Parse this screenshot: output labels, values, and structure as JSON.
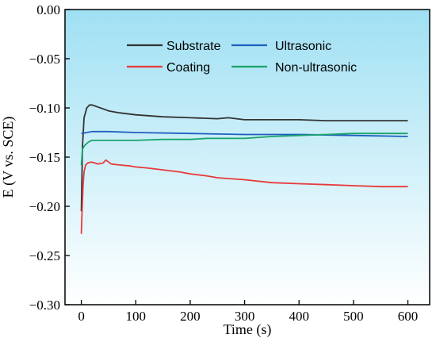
{
  "chart_data": {
    "type": "line",
    "title": "",
    "xlabel": "Time (s)",
    "ylabel": "E (V vs. SCE)",
    "xlim": [
      -30,
      640
    ],
    "ylim": [
      -0.3,
      0.0
    ],
    "xticks": [
      0,
      100,
      200,
      300,
      400,
      500,
      600
    ],
    "yticks": [
      0.0,
      -0.05,
      -0.1,
      -0.15,
      -0.2,
      -0.25,
      -0.3
    ],
    "xtick_labels": [
      "0",
      "100",
      "200",
      "300",
      "400",
      "500",
      "600"
    ],
    "ytick_labels": [
      "0.00",
      "−0.05",
      "−0.10",
      "−0.15",
      "−0.20",
      "−0.25",
      "−0.30"
    ],
    "grid": false,
    "legend": "top-center",
    "background": {
      "top": "#9fe0f3",
      "bottom": "#ffffff"
    },
    "series": [
      {
        "name": "Substrate",
        "color": "#333333",
        "x": [
          0,
          2,
          5,
          10,
          15,
          20,
          25,
          30,
          40,
          50,
          70,
          100,
          150,
          200,
          250,
          270,
          300,
          350,
          400,
          450,
          500,
          550,
          600
        ],
        "y": [
          -0.205,
          -0.14,
          -0.11,
          -0.1,
          -0.097,
          -0.097,
          -0.098,
          -0.099,
          -0.101,
          -0.103,
          -0.105,
          -0.107,
          -0.109,
          -0.11,
          -0.111,
          -0.11,
          -0.112,
          -0.112,
          -0.112,
          -0.113,
          -0.113,
          -0.113,
          -0.113
        ]
      },
      {
        "name": "Ultrasonic",
        "color": "#1f5fbf",
        "x": [
          0,
          10,
          20,
          30,
          50,
          100,
          200,
          300,
          400,
          500,
          600
        ],
        "y": [
          -0.126,
          -0.125,
          -0.124,
          -0.124,
          -0.124,
          -0.125,
          -0.126,
          -0.127,
          -0.127,
          -0.128,
          -0.129
        ]
      },
      {
        "name": "Coating",
        "color": "#e8393a",
        "x": [
          0,
          1,
          3,
          5,
          8,
          12,
          18,
          25,
          30,
          40,
          45,
          55,
          70,
          90,
          100,
          120,
          150,
          180,
          200,
          230,
          250,
          300,
          350,
          400,
          450,
          500,
          550,
          600
        ],
        "y": [
          -0.228,
          -0.21,
          -0.18,
          -0.165,
          -0.158,
          -0.156,
          -0.155,
          -0.156,
          -0.157,
          -0.156,
          -0.153,
          -0.157,
          -0.158,
          -0.159,
          -0.16,
          -0.161,
          -0.163,
          -0.165,
          -0.167,
          -0.169,
          -0.171,
          -0.173,
          -0.176,
          -0.177,
          -0.178,
          -0.179,
          -0.18,
          -0.18
        ]
      },
      {
        "name": "Non-ultrasonic",
        "color": "#1aa36a",
        "x": [
          0,
          2,
          5,
          10,
          15,
          20,
          30,
          50,
          100,
          150,
          200,
          230,
          250,
          300,
          350,
          400,
          450,
          500,
          550,
          600
        ],
        "y": [
          -0.158,
          -0.142,
          -0.139,
          -0.136,
          -0.134,
          -0.133,
          -0.133,
          -0.133,
          -0.133,
          -0.132,
          -0.132,
          -0.131,
          -0.131,
          -0.131,
          -0.129,
          -0.128,
          -0.127,
          -0.126,
          -0.126,
          -0.126
        ]
      }
    ]
  }
}
